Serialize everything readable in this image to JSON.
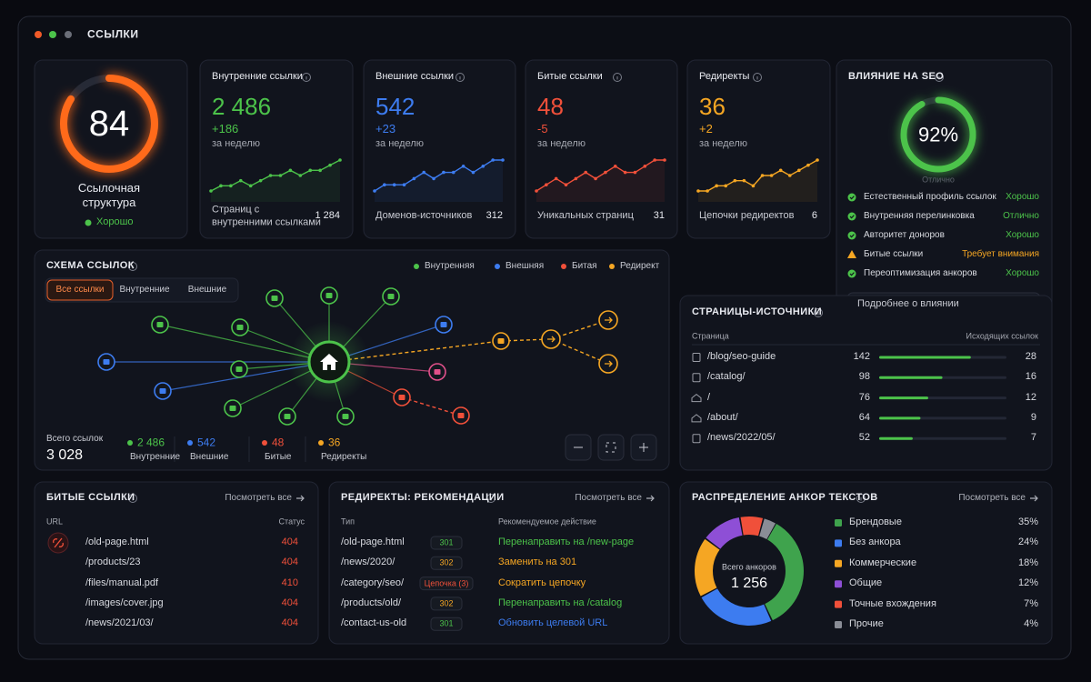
{
  "window": {
    "title": "ССЫЛКИ"
  },
  "score": {
    "value": 84,
    "label": "Ссылочная структура",
    "status": "Хорошо"
  },
  "metrics": [
    {
      "title": "Внутренние ссылки",
      "value": "2 486",
      "delta": "+186",
      "period": "за неделю",
      "foot_label": "Страниц с внутренними ссылками",
      "foot_value": "1 284",
      "color": "#4cc34a",
      "spark": [
        3,
        4,
        4,
        5,
        4,
        5,
        6,
        6,
        7,
        6,
        7,
        7,
        8,
        9
      ]
    },
    {
      "title": "Внешние ссылки",
      "value": "542",
      "delta": "+23",
      "period": "за неделю",
      "foot_label": "Доменов-источников",
      "foot_value": "312",
      "color": "#3d7cf0",
      "spark": [
        3,
        4,
        4,
        4,
        5,
        6,
        5,
        6,
        6,
        7,
        6,
        7,
        8,
        8
      ]
    },
    {
      "title": "Битые ссылки",
      "value": "48",
      "delta": "-5",
      "period": "за неделю",
      "foot_label": "Уникальных страниц",
      "foot_value": "31",
      "color": "#f0503a",
      "spark": [
        3,
        4,
        5,
        4,
        5,
        6,
        5,
        6,
        7,
        6,
        6,
        7,
        8,
        8
      ]
    },
    {
      "title": "Редиректы",
      "value": "36",
      "delta": "+2",
      "period": "за неделю",
      "foot_label": "Цепочки редиректов",
      "foot_value": "6",
      "color": "#f5a623",
      "spark": [
        3,
        3,
        4,
        4,
        5,
        5,
        4,
        6,
        6,
        7,
        6,
        7,
        8,
        9
      ]
    }
  ],
  "seo": {
    "title": "ВЛИЯНИЕ НА SEO",
    "score": {
      "value": 92,
      "label": "92%"
    },
    "caption": "Отлично",
    "items": [
      {
        "label": "Естественный профиль ссылок",
        "status": "Хорошо",
        "level": "good"
      },
      {
        "label": "Внутренняя перелинковка",
        "status": "Отлично",
        "level": "good"
      },
      {
        "label": "Авторитет доноров",
        "status": "Хорошо",
        "level": "good"
      },
      {
        "label": "Битые ссылки",
        "status": "Требует внимания",
        "level": "warn"
      },
      {
        "label": "Переоптимизация анкоров",
        "status": "Хорошо",
        "level": "good"
      }
    ],
    "button": "Подробнее о влиянии"
  },
  "schema": {
    "title": "СХЕМА ССЫЛОК",
    "legend": [
      {
        "name": "Внутренняя",
        "color": "#4cc34a"
      },
      {
        "name": "Внешняя",
        "color": "#3d7cf0"
      },
      {
        "name": "Битая",
        "color": "#f0503a"
      },
      {
        "name": "Редирект",
        "color": "#f5a623"
      }
    ],
    "tabs": [
      "Все ссылки",
      "Внутренние",
      "Внешние"
    ],
    "total_label": "Всего ссылок",
    "total": "3 028",
    "stats": [
      {
        "value": "2 486",
        "label": "Внутренние",
        "color": "#4cc34a"
      },
      {
        "value": "542",
        "label": "Внешние",
        "color": "#3d7cf0"
      },
      {
        "value": "48",
        "label": "Битые",
        "color": "#f0503a"
      },
      {
        "value": "36",
        "label": "Редиректы",
        "color": "#f5a623"
      }
    ]
  },
  "sources": {
    "title": "СТРАНИЦЫ-ИСТОЧНИКИ",
    "col_page": "Страница",
    "col_links": "Исходящих ссылок",
    "rows": [
      {
        "page": "/blog/seo-guide",
        "count": 142,
        "links": 28
      },
      {
        "page": "/catalog/",
        "count": 98,
        "links": 16
      },
      {
        "page": "/",
        "count": 76,
        "links": 12
      },
      {
        "page": "/about/",
        "count": 64,
        "links": 9
      },
      {
        "page": "/news/2022/05/",
        "count": 52,
        "links": 7
      }
    ]
  },
  "broken": {
    "title": "БИТЫЕ ССЫЛКИ",
    "link": "Посмотреть все",
    "col_url": "URL",
    "col_status": "Статус",
    "rows": [
      {
        "url": "/old-page.html",
        "status": "404"
      },
      {
        "url": "/products/23",
        "status": "404"
      },
      {
        "url": "/files/manual.pdf",
        "status": "410"
      },
      {
        "url": "/images/cover.jpg",
        "status": "404"
      },
      {
        "url": "/news/2021/03/",
        "status": "404"
      }
    ]
  },
  "redirects": {
    "title": "РЕДИРЕКТЫ: РЕКОМЕНДАЦИИ",
    "link": "Посмотреть все",
    "col_type": "Тип",
    "col_action": "Рекомендуемое действие",
    "rows": [
      {
        "url": "/old-page.html",
        "code": "301",
        "badge_color": "#4cc34a",
        "action": "Перенаправить на /new-page",
        "action_color": "#4cc34a"
      },
      {
        "url": "/news/2020/",
        "code": "302",
        "badge_color": "#f5a623",
        "action": "Заменить на 301",
        "action_color": "#f5a623"
      },
      {
        "url": "/category/seo/",
        "code": "Цепочка (3)",
        "badge_color": "#f0503a",
        "action": "Сократить цепочку",
        "action_color": "#f5a623"
      },
      {
        "url": "/products/old/",
        "code": "302",
        "badge_color": "#f5a623",
        "action": "Перенаправить на /catalog",
        "action_color": "#4cc34a"
      },
      {
        "url": "/contact-us-old",
        "code": "301",
        "badge_color": "#4cc34a",
        "action": "Обновить целевой URL",
        "action_color": "#3d7cf0"
      }
    ]
  },
  "anchors": {
    "title": "РАСПРЕДЕЛЕНИЕ АНКОР ТЕКСТОВ",
    "link": "Посмотреть все",
    "total_label": "Всего анкоров",
    "total": "1 256",
    "items": [
      {
        "name": "Брендовые",
        "color": "#3fa34d",
        "share": {
          "value": 35,
          "label": "35%"
        }
      },
      {
        "name": "Без анкора",
        "color": "#3d7cf0",
        "share": {
          "value": 24,
          "label": "24%"
        }
      },
      {
        "name": "Коммерческие",
        "color": "#f5a623",
        "share": {
          "value": 18,
          "label": "18%"
        }
      },
      {
        "name": "Общие",
        "color": "#8e4fd6",
        "share": {
          "value": 12,
          "label": "12%"
        }
      },
      {
        "name": "Точные вхождения",
        "color": "#f0503a",
        "share": {
          "value": 7,
          "label": "7%"
        }
      },
      {
        "name": "Прочие",
        "color": "#8a8d96",
        "share": {
          "value": 4,
          "label": "4%"
        }
      }
    ]
  }
}
